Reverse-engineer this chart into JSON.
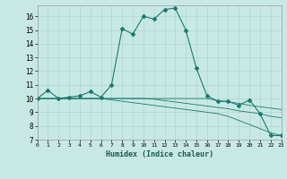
{
  "title": "",
  "xlabel": "Humidex (Indice chaleur)",
  "background_color": "#c8e8e4",
  "grid_color": "#b0d4d0",
  "line_color": "#1a7a6e",
  "xlim": [
    0,
    23
  ],
  "ylim": [
    7,
    16.8
  ],
  "xticks": [
    0,
    1,
    2,
    3,
    4,
    5,
    6,
    7,
    8,
    9,
    10,
    11,
    12,
    13,
    14,
    15,
    16,
    17,
    18,
    19,
    20,
    21,
    22,
    23
  ],
  "yticks": [
    7,
    8,
    9,
    10,
    11,
    12,
    13,
    14,
    15,
    16
  ],
  "main_curve_x": [
    0,
    1,
    2,
    3,
    4,
    5,
    6,
    7,
    8,
    9,
    10,
    11,
    12,
    13,
    14,
    15,
    16,
    17,
    18,
    19,
    20,
    21,
    22,
    23
  ],
  "main_curve_y": [
    10,
    10.6,
    10.0,
    10.1,
    10.2,
    10.5,
    10.1,
    11.0,
    15.1,
    14.7,
    16.0,
    15.8,
    16.5,
    16.6,
    15.0,
    12.2,
    10.2,
    9.8,
    9.8,
    9.5,
    9.9,
    8.9,
    7.3,
    7.3
  ],
  "flat_curves": [
    {
      "x": [
        0,
        6,
        7,
        8,
        9,
        10,
        11,
        12,
        13,
        14,
        15,
        16,
        17,
        18,
        19,
        20,
        21,
        22,
        23
      ],
      "y": [
        10,
        10,
        10,
        10,
        10,
        10,
        10,
        10,
        10,
        10,
        10,
        10,
        9.85,
        9.75,
        9.65,
        9.5,
        9.4,
        9.3,
        9.2
      ]
    },
    {
      "x": [
        0,
        6,
        7,
        8,
        9,
        10,
        11,
        12,
        13,
        14,
        15,
        16,
        17,
        18,
        19,
        20,
        21,
        22,
        23
      ],
      "y": [
        10,
        10,
        10,
        10,
        10,
        10,
        9.95,
        9.85,
        9.75,
        9.65,
        9.55,
        9.45,
        9.35,
        9.25,
        9.1,
        9.0,
        8.9,
        8.7,
        8.6
      ]
    },
    {
      "x": [
        0,
        6,
        7,
        8,
        9,
        10,
        11,
        12,
        13,
        14,
        15,
        16,
        17,
        18,
        19,
        20,
        21,
        22,
        23
      ],
      "y": [
        10,
        10,
        9.9,
        9.8,
        9.7,
        9.6,
        9.5,
        9.4,
        9.3,
        9.2,
        9.1,
        9.0,
        8.9,
        8.7,
        8.4,
        8.1,
        7.8,
        7.5,
        7.3
      ]
    }
  ]
}
